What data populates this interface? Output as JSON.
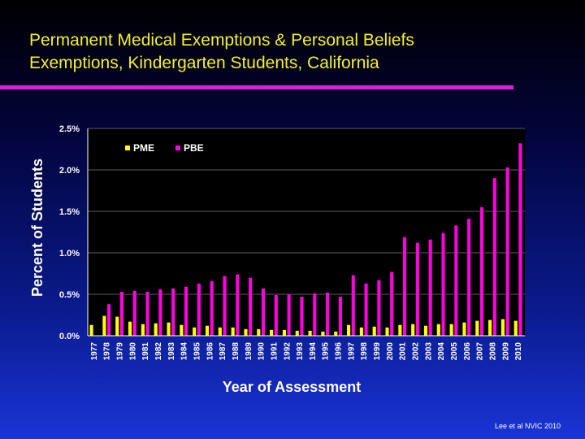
{
  "slide": {
    "title_line1": "Permanent Medical Exemptions & Personal Beliefs",
    "title_line2": "Exemptions, Kindergarten Students, California",
    "source": "Lee et al NVIC 2010"
  },
  "colors": {
    "title": "#f4f02a",
    "rule": "#e01ee0",
    "pme": "#ffff00",
    "pbe": "#ff00e0",
    "plot_bg": "#000000"
  },
  "chart_data": {
    "type": "bar",
    "title": "",
    "xlabel": "Year of Assessment",
    "ylabel": "Percent of Students",
    "ylim": [
      0,
      2.5
    ],
    "yticks": [
      "0.0%",
      "0.5%",
      "1.0%",
      "1.5%",
      "2.0%",
      "2.5%"
    ],
    "grid": true,
    "legend_placement": "top-left",
    "categories": [
      "1977",
      "1978",
      "1979",
      "1980",
      "1981",
      "1982",
      "1983",
      "1984",
      "1985",
      "1986",
      "1987",
      "1988",
      "1989",
      "1990",
      "1991",
      "1992",
      "1993",
      "1994",
      "1995",
      "1996",
      "1997",
      "1998",
      "1999",
      "2000",
      "2001",
      "2002",
      "2003",
      "2004",
      "2005",
      "2006",
      "2007",
      "2008",
      "2009",
      "2010"
    ],
    "series": [
      {
        "name": "PME",
        "color": "#ffff00",
        "values": [
          0.13,
          0.24,
          0.23,
          0.17,
          0.14,
          0.15,
          0.16,
          0.13,
          0.1,
          0.12,
          0.1,
          0.1,
          0.08,
          0.08,
          0.07,
          0.07,
          0.06,
          0.06,
          0.05,
          0.05,
          0.13,
          0.1,
          0.11,
          0.1,
          0.13,
          0.14,
          0.12,
          0.14,
          0.14,
          0.16,
          0.18,
          0.19,
          0.2,
          0.18
        ]
      },
      {
        "name": "PBE",
        "color": "#ff00e0",
        "values": [
          0.0,
          0.38,
          0.53,
          0.54,
          0.53,
          0.56,
          0.57,
          0.59,
          0.63,
          0.66,
          0.72,
          0.74,
          0.7,
          0.57,
          0.49,
          0.5,
          0.47,
          0.51,
          0.52,
          0.47,
          0.73,
          0.63,
          0.67,
          0.77,
          1.19,
          1.12,
          1.16,
          1.24,
          1.33,
          1.41,
          1.55,
          1.9,
          2.03,
          2.32
        ]
      }
    ]
  }
}
